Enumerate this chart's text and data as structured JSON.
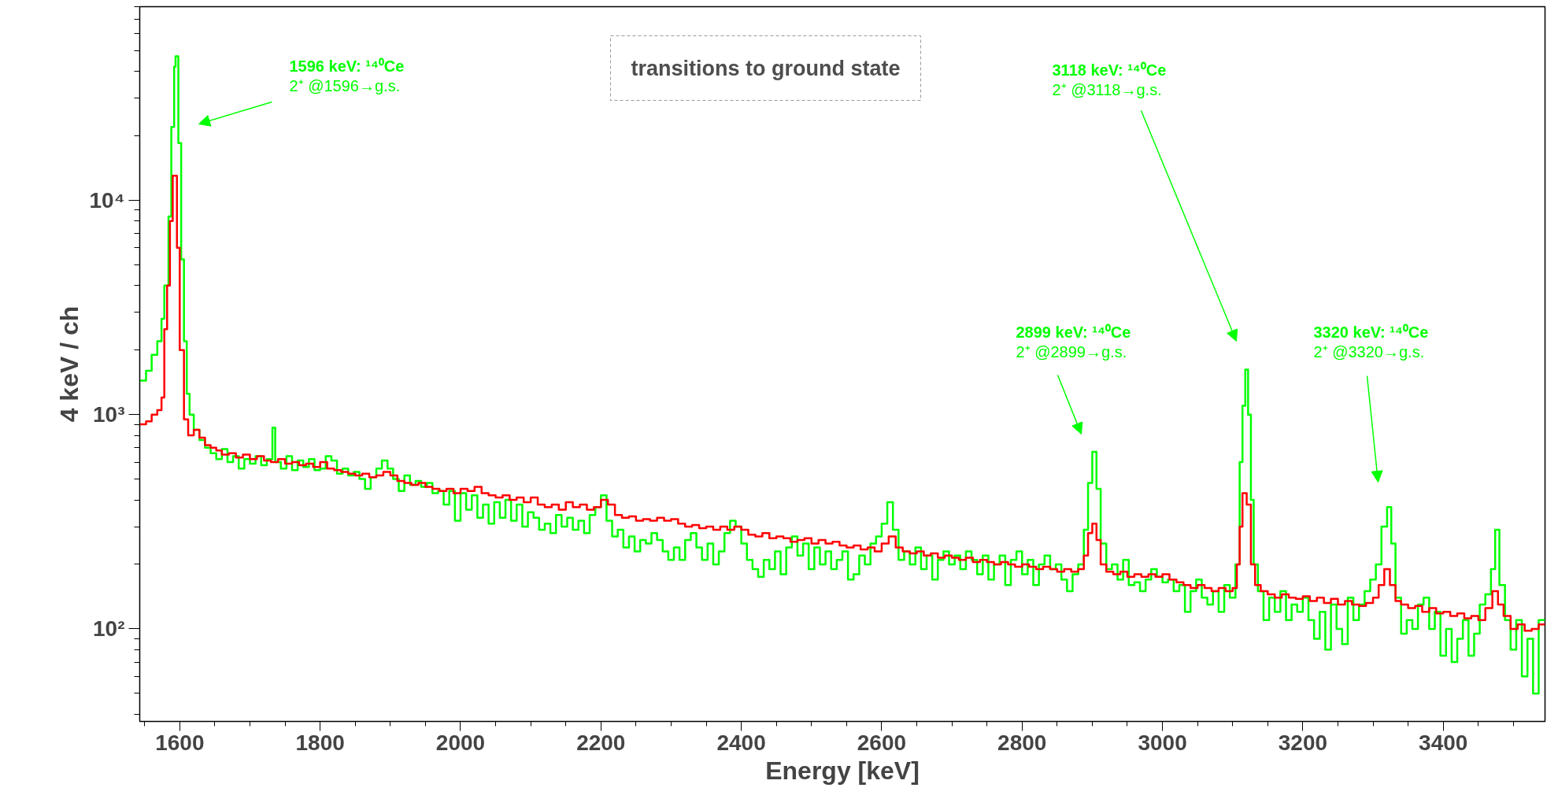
{
  "chart_data": {
    "type": "step",
    "title": "transitions to ground state",
    "xlabel": "Energy [keV]",
    "ylabel": "4 keV / ch",
    "log": true,
    "xlim": [
      1543,
      3545
    ],
    "ylim": [
      37,
      80000
    ],
    "xticks": [
      1600,
      1800,
      2000,
      2200,
      2400,
      2600,
      2800,
      3000,
      3200,
      3400
    ],
    "yticks": [
      {
        "value": 100,
        "label": "10²"
      },
      {
        "value": 1000,
        "label": "10³"
      },
      {
        "value": 10000,
        "label": "10⁴"
      }
    ],
    "annotations": [
      "1596 keV: ¹⁴⁰Ce\n2⁺ @1596→g.s.",
      "2899 keV: ¹⁴⁰Ce\n2⁺ @2899→g.s.",
      "3118 keV: ¹⁴⁰Ce\n2⁺ @3118→g.s.",
      "3320 keV: ¹⁴⁰Ce\n2⁺ @3320→g.s."
    ],
    "series": [
      {
        "color": "#00ff00",
        "x": [
          1543,
          1552,
          1560,
          1568,
          1574,
          1578,
          1584,
          1588,
          1592,
          1594,
          1598,
          1602,
          1606,
          1610,
          1614,
          1620,
          1628,
          1636,
          1644,
          1652,
          1660,
          1668,
          1676,
          1684,
          1692,
          1700,
          1708,
          1716,
          1724,
          1732,
          1736,
          1744,
          1752,
          1760,
          1768,
          1776,
          1784,
          1792,
          1800,
          1808,
          1816,
          1824,
          1832,
          1840,
          1848,
          1856,
          1864,
          1872,
          1880,
          1888,
          1896,
          1904,
          1912,
          1920,
          1928,
          1936,
          1944,
          1952,
          1960,
          1968,
          1976,
          1984,
          1992,
          2000,
          2008,
          2016,
          2024,
          2032,
          2040,
          2048,
          2056,
          2064,
          2072,
          2080,
          2088,
          2096,
          2104,
          2112,
          2120,
          2128,
          2136,
          2144,
          2152,
          2160,
          2168,
          2176,
          2184,
          2192,
          2200,
          2208,
          2216,
          2224,
          2232,
          2240,
          2248,
          2256,
          2264,
          2272,
          2280,
          2288,
          2296,
          2304,
          2312,
          2320,
          2328,
          2336,
          2344,
          2352,
          2360,
          2368,
          2376,
          2384,
          2392,
          2400,
          2408,
          2416,
          2424,
          2432,
          2440,
          2448,
          2456,
          2464,
          2472,
          2480,
          2488,
          2496,
          2504,
          2512,
          2520,
          2528,
          2536,
          2544,
          2552,
          2560,
          2568,
          2576,
          2584,
          2592,
          2600,
          2608,
          2616,
          2624,
          2632,
          2640,
          2648,
          2656,
          2664,
          2672,
          2680,
          2688,
          2696,
          2704,
          2712,
          2720,
          2728,
          2736,
          2744,
          2752,
          2760,
          2768,
          2776,
          2784,
          2792,
          2800,
          2808,
          2816,
          2824,
          2832,
          2840,
          2848,
          2856,
          2864,
          2872,
          2880,
          2888,
          2894,
          2900,
          2906,
          2912,
          2920,
          2928,
          2936,
          2944,
          2952,
          2960,
          2968,
          2976,
          2984,
          2992,
          3000,
          3008,
          3016,
          3024,
          3032,
          3040,
          3048,
          3056,
          3064,
          3072,
          3080,
          3088,
          3096,
          3104,
          3110,
          3114,
          3118,
          3122,
          3126,
          3130,
          3136,
          3144,
          3152,
          3160,
          3168,
          3176,
          3184,
          3192,
          3200,
          3208,
          3216,
          3224,
          3232,
          3240,
          3248,
          3256,
          3264,
          3272,
          3280,
          3288,
          3296,
          3304,
          3312,
          3320,
          3326,
          3332,
          3340,
          3348,
          3356,
          3364,
          3372,
          3380,
          3388,
          3396,
          3404,
          3412,
          3420,
          3428,
          3436,
          3444,
          3452,
          3460,
          3468,
          3474,
          3480,
          3488,
          3496,
          3504,
          3512,
          3520,
          3528,
          3536,
          3545
        ],
        "values": [
          1440,
          1600,
          1900,
          2200,
          2800,
          4000,
          8400,
          22000,
          42000,
          47000,
          18500,
          5300,
          2200,
          1250,
          1000,
          850,
          760,
          700,
          660,
          620,
          690,
          600,
          640,
          560,
          620,
          590,
          640,
          580,
          620,
          870,
          600,
          560,
          640,
          550,
          610,
          570,
          620,
          550,
          560,
          640,
          610,
          530,
          560,
          520,
          540,
          500,
          450,
          510,
          560,
          610,
          560,
          500,
          440,
          520,
          470,
          490,
          460,
          480,
          430,
          440,
          380,
          440,
          320,
          430,
          360,
          420,
          330,
          380,
          310,
          390,
          330,
          400,
          320,
          380,
          300,
          350,
          330,
          290,
          310,
          280,
          340,
          300,
          330,
          290,
          320,
          280,
          340,
          370,
          420,
          320,
          270,
          290,
          240,
          270,
          230,
          260,
          250,
          280,
          260,
          230,
          210,
          240,
          210,
          260,
          280,
          240,
          210,
          250,
          200,
          230,
          280,
          320,
          300,
          250,
          210,
          190,
          175,
          210,
          190,
          230,
          180,
          240,
          270,
          220,
          250,
          190,
          240,
          200,
          230,
          190,
          210,
          230,
          170,
          180,
          220,
          200,
          250,
          270,
          310,
          390,
          290,
          210,
          230,
          200,
          240,
          190,
          220,
          170,
          210,
          230,
          200,
          220,
          190,
          230,
          210,
          180,
          220,
          170,
          200,
          220,
          160,
          210,
          230,
          180,
          210,
          160,
          200,
          220,
          190,
          200,
          170,
          150,
          180,
          200,
          290,
          480,
          670,
          450,
          250,
          190,
          200,
          170,
          210,
          160,
          165,
          150,
          170,
          190,
          175,
          165,
          170,
          150,
          160,
          120,
          150,
          170,
          140,
          130,
          150,
          120,
          160,
          140,
          200,
          600,
          1100,
          1620,
          1000,
          400,
          200,
          150,
          110,
          140,
          120,
          150,
          110,
          130,
          120,
          140,
          110,
          90,
          120,
          80,
          130,
          100,
          85,
          140,
          110,
          130,
          150,
          170,
          200,
          300,
          370,
          250,
          140,
          95,
          110,
          100,
          130,
          140,
          100,
          120,
          75,
          100,
          70,
          90,
          110,
          75,
          95,
          130,
          145,
          190,
          290,
          160,
          110,
          80,
          110,
          60,
          90,
          50,
          110,
          110
        ]
      },
      {
        "color": "#ff0000",
        "x": [
          1543,
          1552,
          1560,
          1568,
          1574,
          1578,
          1582,
          1586,
          1590,
          1596,
          1600,
          1606,
          1612,
          1620,
          1628,
          1636,
          1644,
          1652,
          1660,
          1670,
          1680,
          1690,
          1700,
          1710,
          1720,
          1730,
          1740,
          1750,
          1760,
          1770,
          1780,
          1790,
          1800,
          1810,
          1820,
          1830,
          1840,
          1850,
          1860,
          1870,
          1880,
          1890,
          1900,
          1910,
          1920,
          1930,
          1940,
          1950,
          1960,
          1970,
          1980,
          1990,
          2000,
          2010,
          2020,
          2030,
          2040,
          2050,
          2060,
          2070,
          2080,
          2090,
          2100,
          2110,
          2120,
          2130,
          2140,
          2150,
          2160,
          2170,
          2180,
          2190,
          2200,
          2210,
          2220,
          2230,
          2240,
          2250,
          2260,
          2270,
          2280,
          2290,
          2300,
          2310,
          2320,
          2330,
          2340,
          2350,
          2360,
          2370,
          2380,
          2390,
          2400,
          2410,
          2420,
          2430,
          2440,
          2450,
          2460,
          2470,
          2480,
          2490,
          2500,
          2510,
          2520,
          2530,
          2540,
          2550,
          2560,
          2570,
          2580,
          2590,
          2600,
          2610,
          2620,
          2630,
          2640,
          2650,
          2660,
          2670,
          2680,
          2690,
          2700,
          2710,
          2720,
          2730,
          2740,
          2750,
          2760,
          2770,
          2780,
          2790,
          2800,
          2810,
          2820,
          2830,
          2840,
          2850,
          2860,
          2870,
          2880,
          2888,
          2894,
          2900,
          2906,
          2912,
          2920,
          2930,
          2940,
          2950,
          2960,
          2970,
          2980,
          2990,
          3000,
          3010,
          3020,
          3030,
          3040,
          3050,
          3060,
          3070,
          3080,
          3090,
          3100,
          3106,
          3110,
          3114,
          3120,
          3126,
          3132,
          3140,
          3150,
          3160,
          3170,
          3180,
          3190,
          3200,
          3210,
          3220,
          3230,
          3240,
          3250,
          3260,
          3270,
          3280,
          3290,
          3300,
          3308,
          3316,
          3324,
          3332,
          3340,
          3350,
          3360,
          3370,
          3380,
          3390,
          3400,
          3410,
          3420,
          3430,
          3440,
          3450,
          3460,
          3470,
          3478,
          3486,
          3496,
          3506,
          3516,
          3526,
          3536,
          3545
        ],
        "values": [
          900,
          930,
          1000,
          1050,
          1200,
          2500,
          4000,
          8000,
          13000,
          6000,
          2000,
          950,
          800,
          850,
          780,
          720,
          700,
          680,
          650,
          660,
          630,
          650,
          620,
          640,
          610,
          600,
          620,
          590,
          600,
          580,
          590,
          570,
          600,
          560,
          550,
          540,
          530,
          520,
          530,
          510,
          520,
          540,
          520,
          490,
          480,
          470,
          480,
          460,
          450,
          440,
          450,
          430,
          450,
          440,
          460,
          430,
          420,
          410,
          420,
          400,
          410,
          390,
          410,
          380,
          370,
          380,
          360,
          390,
          370,
          380,
          360,
          370,
          400,
          380,
          340,
          330,
          335,
          320,
          325,
          320,
          330,
          320,
          325,
          310,
          300,
          305,
          295,
          300,
          290,
          300,
          290,
          300,
          290,
          275,
          270,
          280,
          265,
          270,
          265,
          255,
          260,
          265,
          250,
          260,
          250,
          255,
          245,
          240,
          245,
          235,
          240,
          230,
          250,
          270,
          240,
          230,
          225,
          230,
          220,
          225,
          215,
          220,
          215,
          210,
          215,
          205,
          210,
          205,
          200,
          205,
          200,
          195,
          200,
          195,
          190,
          195,
          190,
          185,
          190,
          185,
          190,
          220,
          280,
          310,
          260,
          200,
          185,
          180,
          185,
          175,
          180,
          175,
          180,
          175,
          180,
          170,
          165,
          160,
          155,
          160,
          155,
          150,
          155,
          150,
          155,
          200,
          300,
          430,
          380,
          200,
          160,
          150,
          145,
          140,
          145,
          140,
          138,
          142,
          135,
          140,
          132,
          138,
          130,
          135,
          130,
          128,
          132,
          140,
          160,
          190,
          160,
          135,
          130,
          125,
          128,
          120,
          125,
          118,
          120,
          115,
          118,
          112,
          115,
          110,
          125,
          150,
          130,
          115,
          100,
          105,
          98,
          100,
          105,
          105
        ]
      }
    ]
  }
}
